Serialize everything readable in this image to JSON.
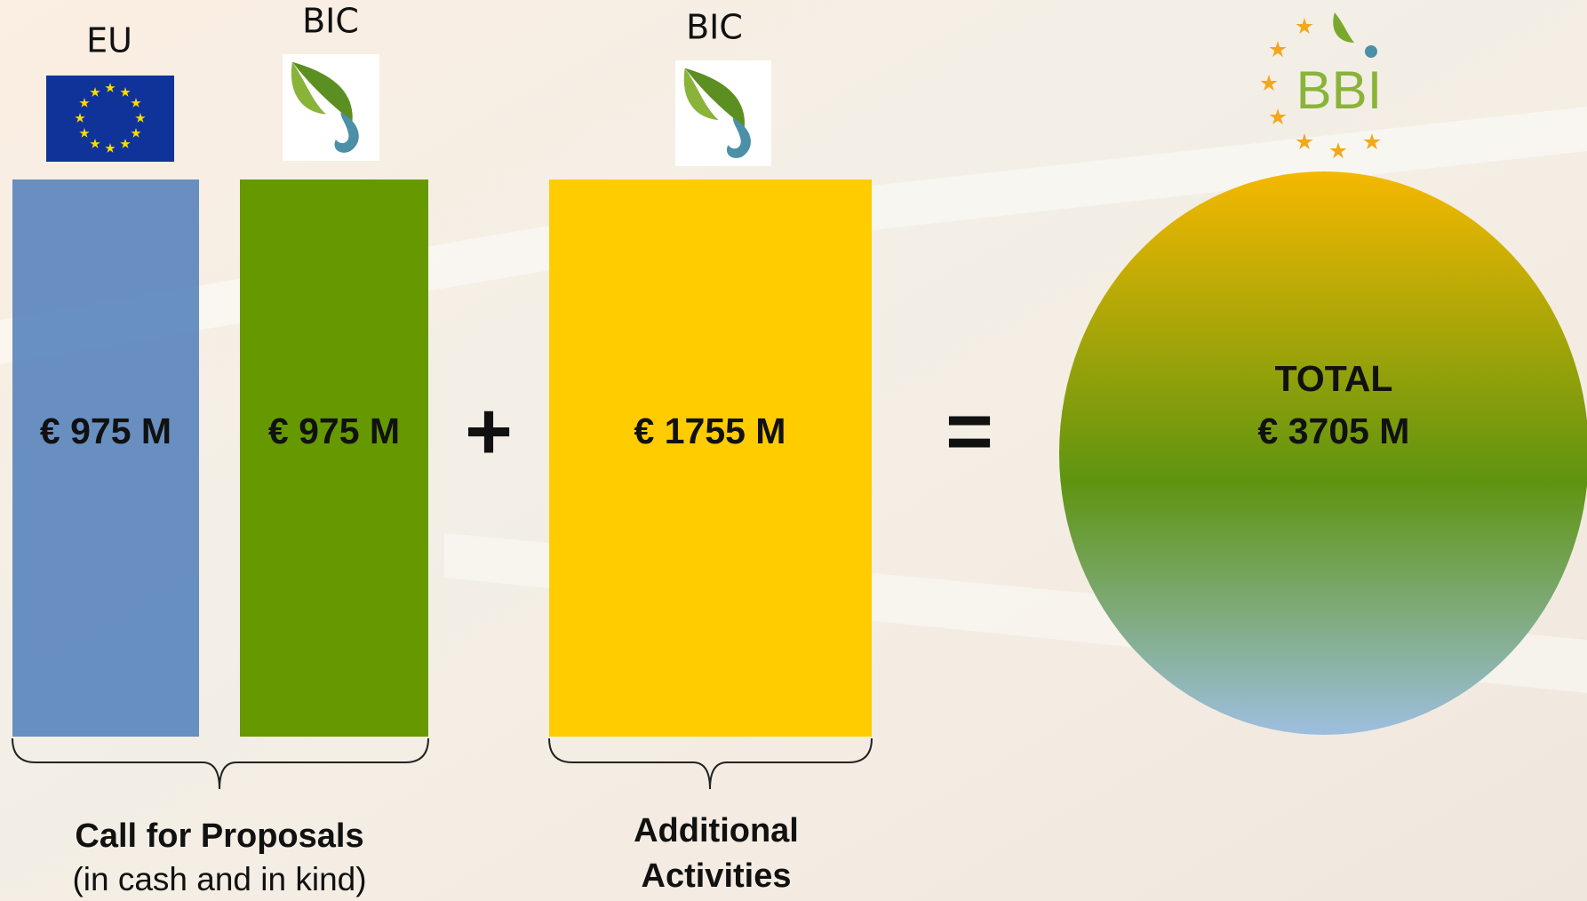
{
  "columns": [
    {
      "funder": "EU",
      "amount": "€ 975 M"
    },
    {
      "funder": "BIC",
      "amount": "€ 975 M"
    },
    {
      "funder": "BIC",
      "amount": "€ 1755 M"
    }
  ],
  "operators": [
    "+",
    "="
  ],
  "total": {
    "logo": "BBI",
    "label": "TOTAL",
    "amount": "€ 3705 M"
  },
  "groups": [
    {
      "title": "Call for Proposals",
      "subtitle": "(in cash and in kind)"
    },
    {
      "title": "Additional",
      "title_line2": "Activities"
    }
  ]
}
